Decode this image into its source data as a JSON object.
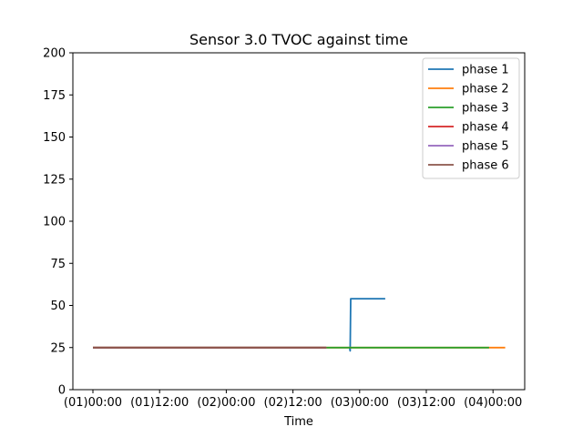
{
  "chart_data": {
    "type": "line",
    "title": "Sensor 3.0 TVOC against  time",
    "xlabel": "Time",
    "ylabel": "",
    "ylim": [
      0,
      200
    ],
    "yticks": [
      0,
      25,
      50,
      75,
      100,
      125,
      150,
      175,
      200
    ],
    "xlim": [
      "2023-01-00T20:00",
      "2023-01-04T05:00"
    ],
    "xticks": [
      {
        "t": "(01)00:00",
        "hours": 0
      },
      {
        "t": "(01)12:00",
        "hours": 12
      },
      {
        "t": "(02)00:00",
        "hours": 24
      },
      {
        "t": "(02)12:00",
        "hours": 36
      },
      {
        "t": "(03)00:00",
        "hours": 48
      },
      {
        "t": "(03)12:00",
        "hours": 60
      },
      {
        "t": "(04)00:00",
        "hours": 72
      }
    ],
    "legend_position": "top-right",
    "grid": false,
    "series": [
      {
        "name": "phase 1",
        "color": "#1f77b4",
        "points": [
          [
            46.2,
            25
          ],
          [
            46.3,
            23
          ],
          [
            46.4,
            54
          ],
          [
            52.6,
            54
          ]
        ]
      },
      {
        "name": "phase 2",
        "color": "#ff7f0e",
        "points": [
          [
            0,
            25
          ],
          [
            74.2,
            25
          ]
        ]
      },
      {
        "name": "phase 3",
        "color": "#2ca02c",
        "points": [
          [
            0,
            25
          ],
          [
            71.3,
            25
          ]
        ]
      },
      {
        "name": "phase 4",
        "color": "#d62728",
        "points": [
          [
            0,
            25
          ],
          [
            42.0,
            25
          ]
        ]
      },
      {
        "name": "phase 5",
        "color": "#9467bd",
        "points": [
          [
            0,
            25
          ],
          [
            42.0,
            25
          ]
        ]
      },
      {
        "name": "phase 6",
        "color": "#8c564b",
        "points": [
          [
            0,
            25
          ],
          [
            42.0,
            25
          ]
        ]
      }
    ]
  }
}
